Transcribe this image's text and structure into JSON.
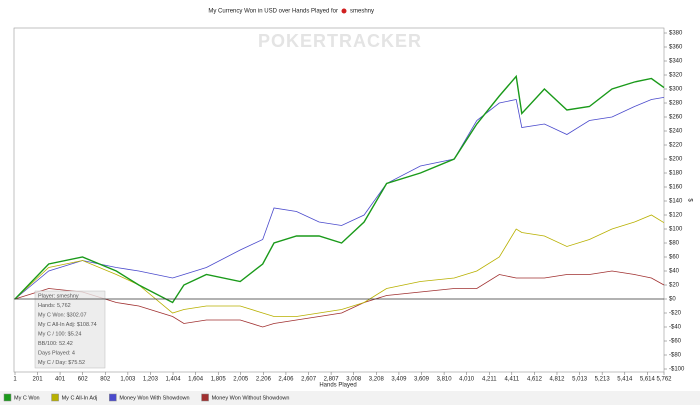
{
  "chart_data": {
    "type": "line",
    "title": "My Currency Won in USD over Hands Played for",
    "player": "smeshny",
    "watermark": "POKERTRACKER",
    "xlabel": "Hands Played",
    "ylabel": "$",
    "x": [
      1,
      300,
      600,
      900,
      1100,
      1400,
      1500,
      1700,
      2000,
      2200,
      2300,
      2500,
      2700,
      2900,
      3100,
      3300,
      3600,
      3900,
      4100,
      4300,
      4450,
      4500,
      4700,
      4900,
      5100,
      5300,
      5500,
      5650,
      5762
    ],
    "series": [
      {
        "name": "My C Won",
        "color": "#1a9a1a",
        "values": [
          0,
          50,
          60,
          40,
          20,
          -5,
          20,
          35,
          25,
          50,
          80,
          90,
          90,
          80,
          110,
          165,
          180,
          200,
          250,
          290,
          318,
          265,
          300,
          270,
          275,
          300,
          310,
          315,
          302
        ]
      },
      {
        "name": "My C All-In Adj",
        "color": "#b8b000",
        "values": [
          0,
          45,
          55,
          35,
          20,
          -20,
          -15,
          -10,
          -10,
          -20,
          -25,
          -25,
          -20,
          -15,
          -5,
          15,
          25,
          30,
          40,
          60,
          100,
          95,
          90,
          75,
          85,
          100,
          110,
          120,
          109
        ]
      },
      {
        "name": "Money Won With Showdown",
        "color": "#4a4acc",
        "values": [
          0,
          40,
          55,
          45,
          40,
          30,
          35,
          45,
          70,
          85,
          130,
          125,
          110,
          105,
          120,
          165,
          190,
          200,
          255,
          280,
          285,
          245,
          250,
          235,
          255,
          260,
          275,
          285,
          288
        ]
      },
      {
        "name": "Money Won Without Showdown",
        "color": "#a03030",
        "values": [
          0,
          15,
          10,
          -5,
          -10,
          -25,
          -35,
          -30,
          -30,
          -40,
          -35,
          -30,
          -25,
          -20,
          -5,
          5,
          10,
          15,
          15,
          35,
          30,
          30,
          30,
          35,
          35,
          40,
          35,
          30,
          20
        ]
      }
    ],
    "xlim": [
      1,
      5762
    ],
    "xticks": [
      1,
      201,
      401,
      602,
      802,
      {
        "value": 1003,
        "label": "1,003"
      },
      {
        "value": 1203,
        "label": "1,203"
      },
      {
        "value": 1404,
        "label": "1,404"
      },
      {
        "value": 1604,
        "label": "1,604"
      },
      {
        "value": 1805,
        "label": "1,805"
      },
      {
        "value": 2005,
        "label": "2,005"
      },
      {
        "value": 2206,
        "label": "2,206"
      },
      {
        "value": 2406,
        "label": "2,406"
      },
      {
        "value": 2607,
        "label": "2,607"
      },
      {
        "value": 2807,
        "label": "2,807"
      },
      {
        "value": 3008,
        "label": "3,008"
      },
      {
        "value": 3208,
        "label": "3,208"
      },
      {
        "value": 3409,
        "label": "3,409"
      },
      {
        "value": 3609,
        "label": "3,609"
      },
      {
        "value": 3810,
        "label": "3,810"
      },
      {
        "value": 4010,
        "label": "4,010"
      },
      {
        "value": 4211,
        "label": "4,211"
      },
      {
        "value": 4411,
        "label": "4,411"
      },
      {
        "value": 4612,
        "label": "4,612"
      },
      {
        "value": 4812,
        "label": "4,812"
      },
      {
        "value": 5013,
        "label": "5,013"
      },
      {
        "value": 5213,
        "label": "5,213"
      },
      {
        "value": 5414,
        "label": "5,414"
      },
      {
        "value": 5614,
        "label": "5,614"
      },
      {
        "value": 5762,
        "label": "5,762"
      }
    ],
    "ylim": [
      -100,
      380
    ],
    "yticks": [
      {
        "value": -100,
        "label": "-$100"
      },
      {
        "value": -80,
        "label": "-$80"
      },
      {
        "value": -60,
        "label": "-$60"
      },
      {
        "value": -40,
        "label": "-$40"
      },
      {
        "value": -20,
        "label": "-$20"
      },
      {
        "value": 0,
        "label": "$0"
      },
      {
        "value": 20,
        "label": "$20"
      },
      {
        "value": 40,
        "label": "$40"
      },
      {
        "value": 60,
        "label": "$60"
      },
      {
        "value": 80,
        "label": "$80"
      },
      {
        "value": 100,
        "label": "$100"
      },
      {
        "value": 120,
        "label": "$120"
      },
      {
        "value": 140,
        "label": "$140"
      },
      {
        "value": 160,
        "label": "$160"
      },
      {
        "value": 180,
        "label": "$180"
      },
      {
        "value": 200,
        "label": "$200"
      },
      {
        "value": 220,
        "label": "$220"
      },
      {
        "value": 240,
        "label": "$240"
      },
      {
        "value": 260,
        "label": "$260"
      },
      {
        "value": 280,
        "label": "$280"
      },
      {
        "value": 300,
        "label": "$300"
      },
      {
        "value": 320,
        "label": "$320"
      },
      {
        "value": 340,
        "label": "$340"
      },
      {
        "value": 360,
        "label": "$360"
      },
      {
        "value": 380,
        "label": "$380"
      }
    ],
    "grid": false,
    "tooltip": [
      "Player: smeshny",
      "Hands: 5,762",
      "My C Won: $302.07",
      "My C All-In Adj: $108.74",
      "My C / 100: $5.24",
      "BB/100: 52.42",
      "Days Played: 4",
      "My C / Day: $75.52"
    ]
  }
}
